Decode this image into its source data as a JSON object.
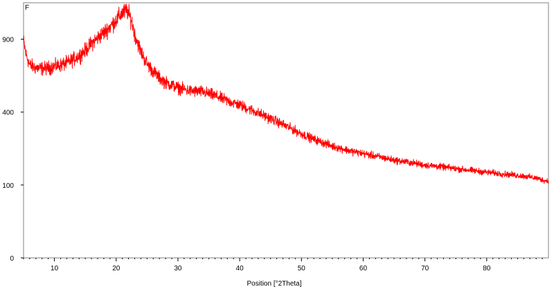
{
  "chart_data": {
    "type": "line",
    "panel_label": "F",
    "xlabel": "Position [°2Theta]",
    "ylabel": "",
    "scale_y": "sqrt",
    "xlim": [
      5,
      90
    ],
    "ylim": [
      0,
      1225
    ],
    "x_ticks": [
      10,
      20,
      30,
      40,
      50,
      60,
      70,
      80
    ],
    "y_ticks": [
      0,
      100,
      400,
      900
    ],
    "grid": false,
    "legend": "none",
    "series": [
      {
        "color": "#ff0000",
        "noise_fraction": 0.035,
        "points": [
          [
            5.0,
            885
          ],
          [
            5.4,
            780
          ],
          [
            6.0,
            700
          ],
          [
            7.0,
            680
          ],
          [
            8.0,
            675
          ],
          [
            9.0,
            680
          ],
          [
            10.0,
            690
          ],
          [
            11.0,
            700
          ],
          [
            12.0,
            715
          ],
          [
            13.0,
            740
          ],
          [
            14.0,
            770
          ],
          [
            15.0,
            810
          ],
          [
            16.0,
            865
          ],
          [
            17.0,
            910
          ],
          [
            18.0,
            955
          ],
          [
            19.0,
            1005
          ],
          [
            20.0,
            1065
          ],
          [
            21.0,
            1130
          ],
          [
            21.8,
            1150
          ],
          [
            22.5,
            1060
          ],
          [
            23.0,
            940
          ],
          [
            24.0,
            800
          ],
          [
            25.0,
            710
          ],
          [
            26.0,
            655
          ],
          [
            27.0,
            610
          ],
          [
            28.0,
            580
          ],
          [
            30.0,
            545
          ],
          [
            32.0,
            525
          ],
          [
            34.0,
            520
          ],
          [
            36.0,
            495
          ],
          [
            38.0,
            465
          ],
          [
            40.0,
            440
          ],
          [
            42.0,
            410
          ],
          [
            44.0,
            380
          ],
          [
            46.0,
            350
          ],
          [
            48.0,
            320
          ],
          [
            50.0,
            290
          ],
          [
            52.0,
            265
          ],
          [
            55.0,
            235
          ],
          [
            58.0,
            215
          ],
          [
            60.0,
            205
          ],
          [
            62.0,
            195
          ],
          [
            65.0,
            180
          ],
          [
            68.0,
            170
          ],
          [
            70.0,
            162
          ],
          [
            72.0,
            158
          ],
          [
            75.0,
            150
          ],
          [
            78.0,
            143
          ],
          [
            80.0,
            138
          ],
          [
            83.0,
            132
          ],
          [
            86.0,
            126
          ],
          [
            88.0,
            120
          ],
          [
            89.5,
            112
          ],
          [
            90.0,
            112
          ]
        ]
      }
    ]
  }
}
